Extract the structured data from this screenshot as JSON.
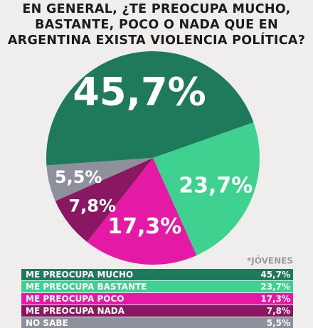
{
  "chart_data": {
    "type": "pie",
    "title": "EN GENERAL, ¿TE PREOCUPA MUCHO, BASTANTE, POCO O NADA QUE EN ARGENTINA EXISTA VIOLENCIA POLÍTICA?",
    "subtitle": "*JÓVENES",
    "categories": [
      "ME PREOCUPA MUCHO",
      "ME PREOCUPA BASTANTE",
      "ME PREOCUPA POCO",
      "ME PREOCUPA NADA",
      "NO SABE"
    ],
    "values": [
      45.7,
      23.7,
      17.3,
      7.8,
      5.5
    ],
    "value_labels": [
      "45,7%",
      "23,7%",
      "17,3%",
      "7,8%",
      "5,5%"
    ],
    "colors": [
      "#1f7a5b",
      "#3fd190",
      "#e41aa6",
      "#8a1761",
      "#8e909b"
    ]
  }
}
